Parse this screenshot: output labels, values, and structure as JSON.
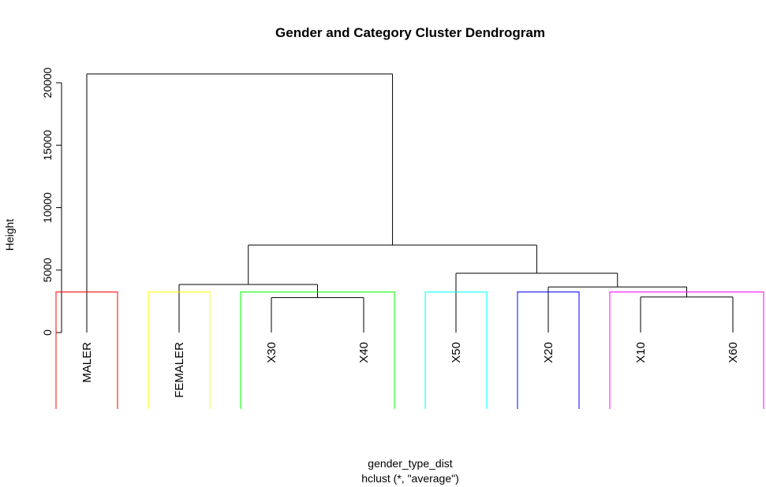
{
  "chart_data": {
    "type": "dendrogram",
    "title": "Gender and Category Cluster Dendrogram",
    "xlabel": "gender_type_dist",
    "sublabel": "hclust (*, \"average\")",
    "ylabel": "Height",
    "ylim": [
      0,
      21000
    ],
    "yticks": [
      0,
      5000,
      10000,
      15000,
      20000
    ],
    "leaves": [
      "MALER",
      "FEMALER",
      "X30",
      "X40",
      "X50",
      "X20",
      "X10",
      "X60"
    ],
    "merges": [
      {
        "left": "X30",
        "right": "X40",
        "height": 2800
      },
      {
        "left": "X10",
        "right": "X60",
        "height": 2850
      },
      {
        "left": "X20",
        "right": "X10+X60",
        "height": 3650
      },
      {
        "left": "FEMALER",
        "right": "X30+X40",
        "height": 3850
      },
      {
        "left": "X50",
        "right": "X20+X10+X60",
        "height": 4750
      },
      {
        "left": "FEMALER+X30+X40",
        "right": "X50+X20+X10+X60",
        "height": 7000
      },
      {
        "left": "MALER",
        "right": "all others",
        "height": 20700
      }
    ],
    "cut_height": 3250,
    "clusters": [
      {
        "color": "#ff0000",
        "from_leaf": 0,
        "to_leaf": 0
      },
      {
        "color": "#ffff00",
        "from_leaf": 1,
        "to_leaf": 1
      },
      {
        "color": "#00ff00",
        "from_leaf": 2,
        "to_leaf": 3
      },
      {
        "color": "#00ffff",
        "from_leaf": 4,
        "to_leaf": 4
      },
      {
        "color": "#0000ff",
        "from_leaf": 5,
        "to_leaf": 5
      },
      {
        "color": "#ff00ff",
        "from_leaf": 6,
        "to_leaf": 7
      }
    ],
    "line_color": "#000000"
  }
}
